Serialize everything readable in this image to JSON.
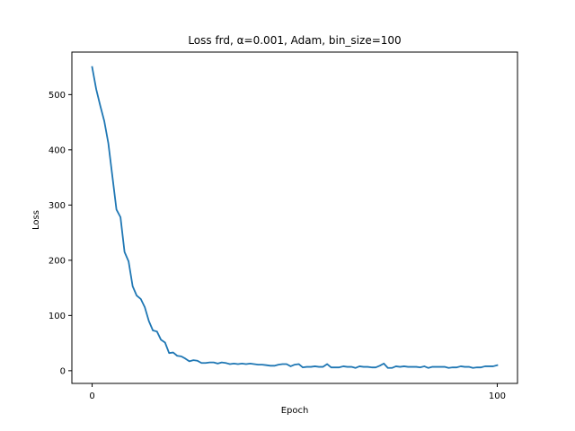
{
  "chart_data": {
    "type": "line",
    "title": "Loss frd, α=0.001, Adam, bin_size=100",
    "xlabel": "Epoch",
    "ylabel": "Loss",
    "xlim": [
      -5,
      105
    ],
    "ylim": [
      -23,
      577
    ],
    "xticks": [
      0,
      100
    ],
    "yticks": [
      0,
      100,
      200,
      300,
      400,
      500
    ],
    "grid": false,
    "color": "#1f77b4",
    "series": [
      {
        "x": [
          0,
          1,
          2,
          3,
          4,
          5,
          6,
          7,
          8,
          9,
          10,
          11,
          12,
          13,
          14,
          15,
          16,
          17,
          18,
          19,
          20,
          21,
          22,
          23,
          24,
          25,
          26,
          27,
          28,
          29,
          30,
          31,
          32,
          33,
          34,
          35,
          36,
          37,
          38,
          39,
          40,
          41,
          42,
          43,
          44,
          45,
          46,
          47,
          48,
          49,
          50,
          51,
          52,
          53,
          54,
          55,
          56,
          57,
          58,
          59,
          60,
          61,
          62,
          63,
          64,
          65,
          66,
          67,
          68,
          69,
          70,
          71,
          72,
          73,
          74,
          75,
          76,
          77,
          78,
          79,
          80,
          81,
          82,
          83,
          84,
          85,
          86,
          87,
          88,
          89,
          90,
          91,
          92,
          93,
          94,
          95,
          96,
          97,
          98,
          99,
          100
        ],
        "y": [
          550,
          510,
          480,
          452,
          412,
          352,
          292,
          278,
          215,
          198,
          153,
          136,
          130,
          115,
          90,
          73,
          71,
          56,
          51,
          32,
          33,
          27,
          26,
          22,
          17,
          19,
          18,
          14,
          14,
          15,
          15,
          13,
          15,
          14,
          12,
          13,
          12,
          13,
          12,
          13,
          12,
          11,
          11,
          10,
          9,
          9,
          11,
          12,
          12,
          8,
          11,
          12,
          6,
          7,
          7,
          8,
          7,
          7,
          12,
          6,
          6,
          6,
          8,
          7,
          7,
          5,
          8,
          7,
          7,
          6,
          6,
          9,
          13,
          5,
          5,
          8,
          7,
          8,
          7,
          7,
          7,
          6,
          8,
          5,
          7,
          7,
          7,
          7,
          5,
          6,
          6,
          8,
          7,
          7,
          5,
          6,
          6,
          8,
          8,
          8,
          10
        ]
      }
    ]
  }
}
